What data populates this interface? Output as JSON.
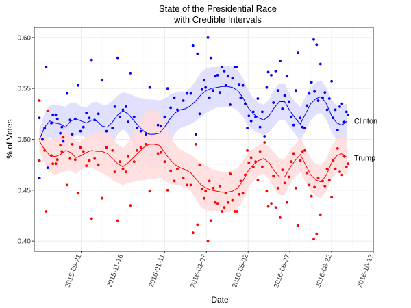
{
  "chart_data": {
    "type": "scatter",
    "title": [
      "State of the Presidential Race",
      "with Credible Intervals"
    ],
    "xlabel": "Date",
    "ylabel": "% of Votes",
    "xlim": [
      "2015-07-20",
      "2016-10-17"
    ],
    "ylim": [
      0.39,
      0.61
    ],
    "x_ticks": [
      "2015-09-21",
      "2015-11-16",
      "2016-01-11",
      "2016-03-07",
      "2016-05-02",
      "2016-06-27",
      "2016-08-22",
      "2016-10-17"
    ],
    "y_ticks": [
      0.4,
      0.45,
      0.5,
      0.55,
      0.6
    ],
    "y_tick_labels": [
      "0.40",
      "0.45",
      "0.50",
      "0.55",
      "0.60"
    ],
    "grid": true,
    "series": [
      {
        "name": "Clinton",
        "color": "#0000ff",
        "band_color": "#dcdcff",
        "trend": [
          [
            "2015-07-27",
            0.5
          ],
          [
            "2015-08-03",
            0.512
          ],
          [
            "2015-08-10",
            0.518
          ],
          [
            "2015-08-17",
            0.516
          ],
          [
            "2015-08-24",
            0.515
          ],
          [
            "2015-08-31",
            0.512
          ],
          [
            "2015-09-07",
            0.518
          ],
          [
            "2015-09-14",
            0.52
          ],
          [
            "2015-09-21",
            0.518
          ],
          [
            "2015-09-28",
            0.516
          ],
          [
            "2015-10-05",
            0.519
          ],
          [
            "2015-10-12",
            0.518
          ],
          [
            "2015-10-19",
            0.513
          ],
          [
            "2015-10-26",
            0.512
          ],
          [
            "2015-11-02",
            0.517
          ],
          [
            "2015-11-09",
            0.524
          ],
          [
            "2015-11-16",
            0.528
          ],
          [
            "2015-11-23",
            0.525
          ],
          [
            "2015-11-30",
            0.519
          ],
          [
            "2015-12-07",
            0.513
          ],
          [
            "2015-12-14",
            0.508
          ],
          [
            "2015-12-21",
            0.505
          ],
          [
            "2015-12-28",
            0.505
          ],
          [
            "2016-01-04",
            0.506
          ],
          [
            "2016-01-11",
            0.512
          ],
          [
            "2016-01-18",
            0.52
          ],
          [
            "2016-01-25",
            0.526
          ],
          [
            "2016-02-01",
            0.529
          ],
          [
            "2016-02-08",
            0.53
          ],
          [
            "2016-02-15",
            0.533
          ],
          [
            "2016-02-22",
            0.538
          ],
          [
            "2016-02-29",
            0.544
          ],
          [
            "2016-03-07",
            0.548
          ],
          [
            "2016-03-14",
            0.55
          ],
          [
            "2016-03-21",
            0.551
          ],
          [
            "2016-03-28",
            0.552
          ],
          [
            "2016-04-04",
            0.552
          ],
          [
            "2016-04-11",
            0.551
          ],
          [
            "2016-04-18",
            0.548
          ],
          [
            "2016-04-25",
            0.541
          ],
          [
            "2016-05-02",
            0.531
          ],
          [
            "2016-05-09",
            0.525
          ],
          [
            "2016-05-16",
            0.521
          ],
          [
            "2016-05-23",
            0.519
          ],
          [
            "2016-05-30",
            0.523
          ],
          [
            "2016-06-06",
            0.531
          ],
          [
            "2016-06-13",
            0.537
          ],
          [
            "2016-06-20",
            0.537
          ],
          [
            "2016-06-27",
            0.528
          ],
          [
            "2016-07-04",
            0.521
          ],
          [
            "2016-07-11",
            0.515
          ],
          [
            "2016-07-18",
            0.525
          ],
          [
            "2016-07-25",
            0.535
          ],
          [
            "2016-08-01",
            0.54
          ],
          [
            "2016-08-08",
            0.542
          ],
          [
            "2016-08-15",
            0.535
          ],
          [
            "2016-08-22",
            0.523
          ],
          [
            "2016-08-29",
            0.516
          ],
          [
            "2016-09-05",
            0.514
          ],
          [
            "2016-09-12",
            0.518
          ]
        ],
        "band_width": [
          0.01,
          0.014,
          0.016,
          0.018,
          0.018,
          0.02,
          0.018,
          0.016,
          0.014,
          0.015,
          0.017,
          0.019,
          0.021,
          0.022,
          0.021,
          0.019,
          0.018,
          0.02,
          0.024,
          0.028,
          0.032,
          0.034,
          0.034,
          0.032,
          0.028,
          0.024,
          0.02,
          0.018,
          0.017,
          0.018,
          0.02,
          0.022,
          0.022,
          0.021,
          0.02,
          0.02,
          0.02,
          0.02,
          0.02,
          0.019,
          0.018,
          0.016,
          0.015,
          0.015,
          0.016,
          0.018,
          0.018,
          0.018,
          0.016,
          0.016,
          0.017,
          0.017,
          0.016,
          0.016,
          0.016,
          0.016,
          0.016,
          0.017,
          0.018,
          0.018
        ]
      },
      {
        "name": "Trump",
        "color": "#ff0000",
        "band_color": "#ffdcdc",
        "trend": [
          [
            "2015-07-27",
            0.498
          ],
          [
            "2015-08-03",
            0.49
          ],
          [
            "2015-08-10",
            0.484
          ],
          [
            "2015-08-17",
            0.483
          ],
          [
            "2015-08-24",
            0.485
          ],
          [
            "2015-08-31",
            0.489
          ],
          [
            "2015-09-07",
            0.487
          ],
          [
            "2015-09-14",
            0.482
          ],
          [
            "2015-09-21",
            0.484
          ],
          [
            "2015-09-28",
            0.487
          ],
          [
            "2015-10-05",
            0.489
          ],
          [
            "2015-10-12",
            0.488
          ],
          [
            "2015-10-19",
            0.488
          ],
          [
            "2015-10-26",
            0.486
          ],
          [
            "2015-11-02",
            0.481
          ],
          [
            "2015-11-09",
            0.476
          ],
          [
            "2015-11-16",
            0.473
          ],
          [
            "2015-11-23",
            0.477
          ],
          [
            "2015-11-30",
            0.482
          ],
          [
            "2015-12-07",
            0.487
          ],
          [
            "2015-12-14",
            0.492
          ],
          [
            "2015-12-21",
            0.495
          ],
          [
            "2015-12-28",
            0.495
          ],
          [
            "2016-01-04",
            0.494
          ],
          [
            "2016-01-11",
            0.487
          ],
          [
            "2016-01-18",
            0.48
          ],
          [
            "2016-01-25",
            0.475
          ],
          [
            "2016-02-01",
            0.472
          ],
          [
            "2016-02-08",
            0.47
          ],
          [
            "2016-02-15",
            0.467
          ],
          [
            "2016-02-22",
            0.461
          ],
          [
            "2016-02-29",
            0.455
          ],
          [
            "2016-03-07",
            0.452
          ],
          [
            "2016-03-14",
            0.45
          ],
          [
            "2016-03-21",
            0.449
          ],
          [
            "2016-03-28",
            0.448
          ],
          [
            "2016-04-04",
            0.448
          ],
          [
            "2016-04-11",
            0.449
          ],
          [
            "2016-04-18",
            0.452
          ],
          [
            "2016-04-25",
            0.459
          ],
          [
            "2016-05-02",
            0.469
          ],
          [
            "2016-05-09",
            0.475
          ],
          [
            "2016-05-16",
            0.479
          ],
          [
            "2016-05-23",
            0.481
          ],
          [
            "2016-05-30",
            0.477
          ],
          [
            "2016-06-06",
            0.469
          ],
          [
            "2016-06-13",
            0.463
          ],
          [
            "2016-06-20",
            0.463
          ],
          [
            "2016-06-27",
            0.472
          ],
          [
            "2016-07-04",
            0.479
          ],
          [
            "2016-07-11",
            0.485
          ],
          [
            "2016-07-18",
            0.475
          ],
          [
            "2016-07-25",
            0.465
          ],
          [
            "2016-08-01",
            0.46
          ],
          [
            "2016-08-08",
            0.458
          ],
          [
            "2016-08-15",
            0.465
          ],
          [
            "2016-08-22",
            0.477
          ],
          [
            "2016-08-29",
            0.484
          ],
          [
            "2016-09-05",
            0.486
          ],
          [
            "2016-09-12",
            0.482
          ]
        ],
        "band_width": [
          0.01,
          0.014,
          0.016,
          0.018,
          0.018,
          0.02,
          0.018,
          0.016,
          0.014,
          0.015,
          0.017,
          0.019,
          0.021,
          0.022,
          0.021,
          0.019,
          0.018,
          0.02,
          0.024,
          0.028,
          0.032,
          0.034,
          0.034,
          0.032,
          0.028,
          0.024,
          0.02,
          0.018,
          0.017,
          0.018,
          0.02,
          0.022,
          0.022,
          0.021,
          0.02,
          0.02,
          0.02,
          0.02,
          0.02,
          0.019,
          0.018,
          0.016,
          0.015,
          0.015,
          0.016,
          0.018,
          0.018,
          0.018,
          0.016,
          0.016,
          0.017,
          0.017,
          0.016,
          0.016,
          0.016,
          0.016,
          0.016,
          0.017,
          0.018,
          0.018
        ]
      }
    ],
    "polls": [
      [
        "2015-07-27",
        0.521
      ],
      [
        "2015-07-27",
        0.462
      ],
      [
        "2015-07-31",
        0.5
      ],
      [
        "2015-08-03",
        0.511
      ],
      [
        "2015-08-05",
        0.571
      ],
      [
        "2015-08-07",
        0.472
      ],
      [
        "2015-08-12",
        0.516
      ],
      [
        "2015-08-14",
        0.524
      ],
      [
        "2015-08-18",
        0.524
      ],
      [
        "2015-08-20",
        0.52
      ],
      [
        "2015-08-24",
        0.506
      ],
      [
        "2015-08-26",
        0.512
      ],
      [
        "2015-08-28",
        0.498
      ],
      [
        "2015-09-02",
        0.545
      ],
      [
        "2015-09-06",
        0.519
      ],
      [
        "2015-09-09",
        0.505
      ],
      [
        "2015-09-13",
        0.52
      ],
      [
        "2015-09-17",
        0.553
      ],
      [
        "2015-09-20",
        0.508
      ],
      [
        "2015-09-24",
        0.512
      ],
      [
        "2015-09-28",
        0.526
      ],
      [
        "2015-10-02",
        0.521
      ],
      [
        "2015-10-05",
        0.578
      ],
      [
        "2015-10-09",
        0.519
      ],
      [
        "2015-10-14",
        0.525
      ],
      [
        "2015-10-19",
        0.558
      ],
      [
        "2015-10-25",
        0.508
      ],
      [
        "2015-11-02",
        0.511
      ],
      [
        "2015-11-05",
        0.532
      ],
      [
        "2015-11-09",
        0.58
      ],
      [
        "2015-11-12",
        0.522
      ],
      [
        "2015-11-16",
        0.529
      ],
      [
        "2015-11-20",
        0.532
      ],
      [
        "2015-11-23",
        0.517
      ],
      [
        "2015-11-26",
        0.565
      ],
      [
        "2015-12-01",
        0.522
      ],
      [
        "2015-12-05",
        0.511
      ],
      [
        "2015-12-10",
        0.508
      ],
      [
        "2015-12-17",
        0.505
      ],
      [
        "2015-12-22",
        0.551
      ],
      [
        "2016-01-02",
        0.514
      ],
      [
        "2016-01-06",
        0.513
      ],
      [
        "2016-01-11",
        0.522
      ],
      [
        "2016-01-15",
        0.55
      ],
      [
        "2016-01-19",
        0.531
      ],
      [
        "2016-01-24",
        0.541
      ],
      [
        "2016-01-28",
        0.529
      ],
      [
        "2016-02-05",
        0.538
      ],
      [
        "2016-02-10",
        0.545
      ],
      [
        "2016-02-15",
        0.545
      ],
      [
        "2016-02-18",
        0.592
      ],
      [
        "2016-02-22",
        0.505
      ],
      [
        "2016-02-24",
        0.584
      ],
      [
        "2016-02-27",
        0.525
      ],
      [
        "2016-03-01",
        0.549
      ],
      [
        "2016-03-04",
        0.558
      ],
      [
        "2016-03-06",
        0.551
      ],
      [
        "2016-03-09",
        0.6
      ],
      [
        "2016-03-11",
        0.541
      ],
      [
        "2016-03-13",
        0.58
      ],
      [
        "2016-03-16",
        0.548
      ],
      [
        "2016-03-19",
        0.562
      ],
      [
        "2016-03-22",
        0.563
      ],
      [
        "2016-03-25",
        0.546
      ],
      [
        "2016-03-28",
        0.571
      ],
      [
        "2016-03-31",
        0.567
      ],
      [
        "2016-04-02",
        0.553
      ],
      [
        "2016-04-05",
        0.562
      ],
      [
        "2016-04-08",
        0.534
      ],
      [
        "2016-04-11",
        0.56
      ],
      [
        "2016-04-14",
        0.571
      ],
      [
        "2016-04-17",
        0.571
      ],
      [
        "2016-04-20",
        0.554
      ],
      [
        "2016-04-22",
        0.541
      ],
      [
        "2016-04-25",
        0.553
      ],
      [
        "2016-04-28",
        0.535
      ],
      [
        "2016-05-01",
        0.511
      ],
      [
        "2016-05-03",
        0.523
      ],
      [
        "2016-05-06",
        0.518
      ],
      [
        "2016-05-09",
        0.527
      ],
      [
        "2016-05-12",
        0.522
      ],
      [
        "2016-05-15",
        0.54
      ],
      [
        "2016-05-18",
        0.512
      ],
      [
        "2016-05-21",
        0.527
      ],
      [
        "2016-05-24",
        0.503
      ],
      [
        "2016-05-27",
        0.551
      ],
      [
        "2016-05-29",
        0.566
      ],
      [
        "2016-06-02",
        0.563
      ],
      [
        "2016-06-05",
        0.536
      ],
      [
        "2016-06-08",
        0.567
      ],
      [
        "2016-06-11",
        0.548
      ],
      [
        "2016-06-14",
        0.577
      ],
      [
        "2016-06-17",
        0.53
      ],
      [
        "2016-06-20",
        0.543
      ],
      [
        "2016-06-23",
        0.562
      ],
      [
        "2016-06-26",
        0.537
      ],
      [
        "2016-06-29",
        0.522
      ],
      [
        "2016-07-02",
        0.514
      ],
      [
        "2016-07-05",
        0.548
      ],
      [
        "2016-07-08",
        0.585
      ],
      [
        "2016-07-11",
        0.521
      ],
      [
        "2016-07-14",
        0.512
      ],
      [
        "2016-07-17",
        0.511
      ],
      [
        "2016-07-20",
        0.533
      ],
      [
        "2016-07-23",
        0.545
      ],
      [
        "2016-07-26",
        0.556
      ],
      [
        "2016-07-29",
        0.598
      ],
      [
        "2016-07-30",
        0.547
      ],
      [
        "2016-08-02",
        0.593
      ],
      [
        "2016-08-04",
        0.538
      ],
      [
        "2016-08-07",
        0.574
      ],
      [
        "2016-08-10",
        0.541
      ],
      [
        "2016-08-13",
        0.546
      ],
      [
        "2016-08-16",
        0.529
      ],
      [
        "2016-08-19",
        0.54
      ],
      [
        "2016-08-22",
        0.557
      ],
      [
        "2016-08-24",
        0.521
      ],
      [
        "2016-08-27",
        0.529
      ],
      [
        "2016-08-30",
        0.509
      ],
      [
        "2016-09-02",
        0.532
      ],
      [
        "2016-09-05",
        0.535
      ],
      [
        "2016-09-08",
        0.517
      ],
      [
        "2016-09-11",
        0.527
      ],
      [
        "2016-09-13",
        0.524
      ]
    ]
  }
}
